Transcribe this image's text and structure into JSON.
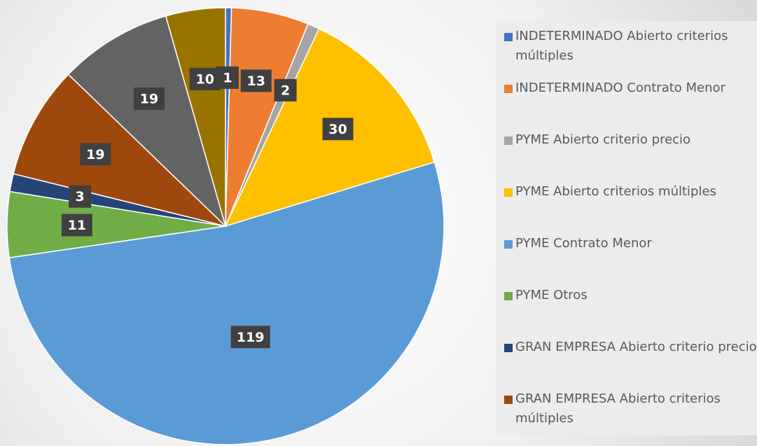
{
  "chart_data": {
    "type": "pie",
    "categories": [
      "INDETERMINADO Abierto criterios múltiples",
      "INDETERMINADO Contrato Menor",
      "PYME Abierto criterio precio",
      "PYME Abierto criterios múltiples",
      "PYME Contrato Menor",
      "PYME Otros",
      "GRAN EMPRESA Abierto criterio precio",
      "GRAN EMPRESA Abierto criterios múltiples",
      null,
      null
    ],
    "values": [
      1,
      13,
      2,
      30,
      119,
      11,
      3,
      19,
      19,
      10
    ],
    "colors": [
      "#4472c4",
      "#ed7d31",
      "#a5a5a5",
      "#ffc000",
      "#5b9bd5",
      "#70ad47",
      "#264478",
      "#9e480e",
      "#636363",
      "#997300"
    ],
    "legend": "right"
  }
}
